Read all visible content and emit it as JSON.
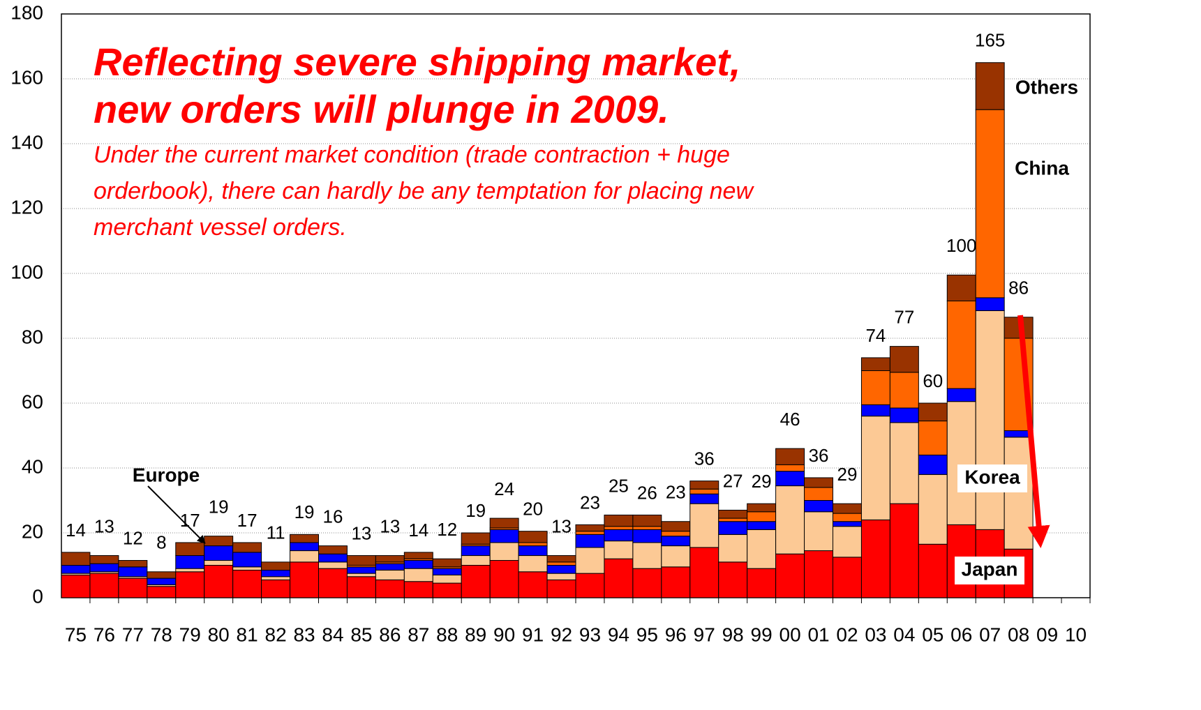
{
  "chart_data": {
    "type": "stacked_bar",
    "title": [
      "Reflecting severe shipping market,",
      "new orders will plunge in 2009."
    ],
    "subtitle": [
      "Under the current market condition (trade contraction + huge",
      "orderbook), there can hardly be any temptation for placing new",
      "merchant vessel orders."
    ],
    "categories": [
      "75",
      "76",
      "77",
      "78",
      "79",
      "80",
      "81",
      "82",
      "83",
      "84",
      "85",
      "86",
      "87",
      "88",
      "89",
      "90",
      "91",
      "92",
      "93",
      "94",
      "95",
      "96",
      "97",
      "98",
      "99",
      "00",
      "01",
      "02",
      "03",
      "04",
      "05",
      "06",
      "07",
      "08",
      "09",
      "10"
    ],
    "series": [
      {
        "name": "Japan",
        "color": "#ff0000",
        "values": [
          7,
          7.5,
          6,
          3.5,
          8,
          10,
          8.5,
          5.5,
          11,
          9,
          6.5,
          5.5,
          5,
          4.5,
          10,
          11.5,
          8,
          5.5,
          7.5,
          12,
          9,
          9.5,
          15.5,
          11,
          9,
          13.5,
          14.5,
          12.5,
          24,
          29,
          16.5,
          22.5,
          21,
          15,
          null,
          null
        ]
      },
      {
        "name": "Korea",
        "color": "#fcc995",
        "values": [
          0.5,
          0.5,
          0.5,
          0.5,
          1,
          1.5,
          1,
          1,
          3.5,
          2,
          1,
          3,
          4,
          2.5,
          3,
          5.5,
          5,
          2,
          8,
          5.5,
          8,
          6.5,
          13.5,
          8.5,
          12,
          21,
          12,
          9.5,
          32,
          25,
          21.5,
          38,
          67.5,
          34.5,
          null,
          null
        ]
      },
      {
        "name": "Europe",
        "color": "#0000ff",
        "values": [
          2.5,
          2.5,
          3,
          2,
          4,
          4.5,
          4.5,
          2,
          2.5,
          2.5,
          2,
          2,
          2.5,
          2,
          3,
          4,
          3,
          2.5,
          4,
          3.5,
          4,
          3,
          3,
          4,
          2.5,
          4.5,
          3.5,
          1.5,
          3.5,
          4.5,
          6,
          4,
          4,
          2,
          null,
          null
        ]
      },
      {
        "name": "China",
        "color": "#ff6600",
        "values": [
          0,
          0,
          0,
          0,
          0,
          0,
          0,
          0,
          0,
          0,
          0.5,
          0.5,
          0.5,
          0.5,
          0.5,
          0.5,
          1,
          1,
          1,
          1,
          1,
          1.5,
          1.5,
          1,
          3,
          2,
          4,
          2.5,
          10.5,
          11,
          10.5,
          27,
          58,
          28.5,
          null,
          null
        ]
      },
      {
        "name": "Others",
        "color": "#993300",
        "values": [
          4,
          2.5,
          2,
          2,
          4,
          3,
          3,
          2.5,
          2.5,
          2.5,
          3,
          2,
          2,
          2.5,
          3.5,
          3,
          3.5,
          2,
          2,
          3.5,
          3.5,
          3,
          2.5,
          2.5,
          2.5,
          5,
          3,
          3,
          4,
          8,
          5.5,
          8,
          14.5,
          6.5,
          null,
          null
        ]
      }
    ],
    "totals": [
      14,
      13,
      12,
      8,
      17,
      19,
      17,
      11,
      19,
      16,
      13,
      13,
      14,
      12,
      19,
      24,
      20,
      13,
      23,
      25,
      26,
      23,
      36,
      27,
      29,
      46,
      36,
      29,
      74,
      77,
      60,
      100,
      165,
      86,
      null,
      null
    ],
    "ylim": [
      0,
      180
    ],
    "yticks": [
      0,
      20,
      40,
      60,
      80,
      100,
      120,
      140,
      160,
      180
    ],
    "grid": true
  }
}
